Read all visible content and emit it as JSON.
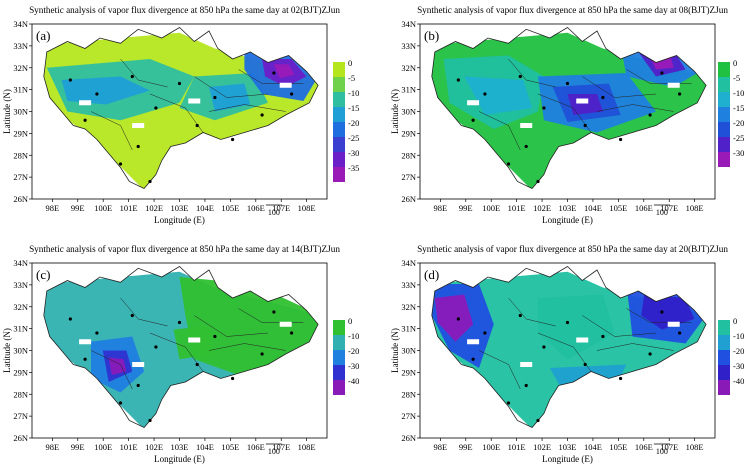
{
  "chart_data": [
    {
      "type": "contour-map",
      "panel_label": "(a)",
      "title": "Synthetic analysis of vapor flux divergence at 850 hPa the same day at 02(BJT)ZJun",
      "xlabel": "Longitude (E)",
      "ylabel": "Latitude (N)",
      "x_ticks": [
        "98E",
        "99E",
        "100E",
        "101E",
        "102E",
        "103E",
        "104E",
        "105E",
        "106E",
        "107E",
        "108E"
      ],
      "y_ticks": [
        "34N",
        "33N",
        "32N",
        "31N",
        "30N",
        "29N",
        "28N",
        "27N",
        "26N"
      ],
      "xlim": [
        97.2,
        108.8
      ],
      "ylim": [
        26,
        34
      ],
      "scale_label": "100",
      "legend": {
        "labels": [
          "0",
          "-5",
          "-10",
          "-15",
          "-20",
          "-25",
          "-30",
          "-35"
        ],
        "colors": [
          "#b5e61d",
          "#6fd24a",
          "#2fbfa0",
          "#1f9fd6",
          "#1f6ee0",
          "#3a3fd0",
          "#6a1fc8",
          "#9a1ab8"
        ]
      }
    },
    {
      "type": "contour-map",
      "panel_label": "(b)",
      "title": "Synthetic analysis of vapor flux divergence at 850 hPa the same day at 08(BJT)ZJun",
      "xlabel": "Longitude (E)",
      "ylabel": "Latitude (N)",
      "x_ticks": [
        "98E",
        "99E",
        "100E",
        "101E",
        "102E",
        "103E",
        "104E",
        "105E",
        "106E",
        "107E",
        "108E"
      ],
      "y_ticks": [
        "34N",
        "33N",
        "32N",
        "31N",
        "30N",
        "29N",
        "28N",
        "27N",
        "26N"
      ],
      "xlim": [
        97.2,
        108.8
      ],
      "ylim": [
        26,
        34
      ],
      "scale_label": "100",
      "legend": {
        "labels": [
          "0",
          "-5",
          "-10",
          "-15",
          "-20",
          "-25",
          "-30"
        ],
        "colors": [
          "#20c040",
          "#20c0a0",
          "#1fb0d0",
          "#1f80e0",
          "#2050d8",
          "#5020c8",
          "#9a1ab8"
        ]
      }
    },
    {
      "type": "contour-map",
      "panel_label": "(c)",
      "title": "Synthetic analysis of vapor flux divergence at 850 hPa the same day at 14(BJT)ZJun",
      "xlabel": "Longitude (E)",
      "ylabel": "Latitude (N)",
      "x_ticks": [
        "98E",
        "99E",
        "100E",
        "101E",
        "102E",
        "103E",
        "104E",
        "105E",
        "106E",
        "107E",
        "108E"
      ],
      "y_ticks": [
        "34N",
        "33N",
        "32N",
        "31N",
        "30N",
        "29N",
        "28N",
        "27N",
        "26N"
      ],
      "xlim": [
        97.2,
        108.8
      ],
      "ylim": [
        26,
        34
      ],
      "scale_label": "100",
      "legend": {
        "labels": [
          "0",
          "-10",
          "-20",
          "-30",
          "-40"
        ],
        "colors": [
          "#30c030",
          "#30b0b0",
          "#1f80e0",
          "#3030d0",
          "#8a1ab8"
        ]
      }
    },
    {
      "type": "contour-map",
      "panel_label": "(d)",
      "title": "Synthetic analysis of vapor flux divergence at 850 hPa the same day at 20(BJT)ZJun",
      "xlabel": "Longitude (E)",
      "ylabel": "Latitude (N)",
      "x_ticks": [
        "98E",
        "99E",
        "100E",
        "101E",
        "102E",
        "103E",
        "104E",
        "105E",
        "106E",
        "107E",
        "108E"
      ],
      "y_ticks": [
        "34N",
        "33N",
        "32N",
        "31N",
        "30N",
        "29N",
        "28N",
        "27N",
        "26N"
      ],
      "xlim": [
        97.2,
        108.8
      ],
      "ylim": [
        26,
        34
      ],
      "scale_label": "100",
      "legend": {
        "labels": [
          "0",
          "-10",
          "-20",
          "-30",
          "-40"
        ],
        "colors": [
          "#20c0a0",
          "#1fa0d0",
          "#2050e0",
          "#3020c8",
          "#8a1ab8"
        ]
      }
    }
  ]
}
